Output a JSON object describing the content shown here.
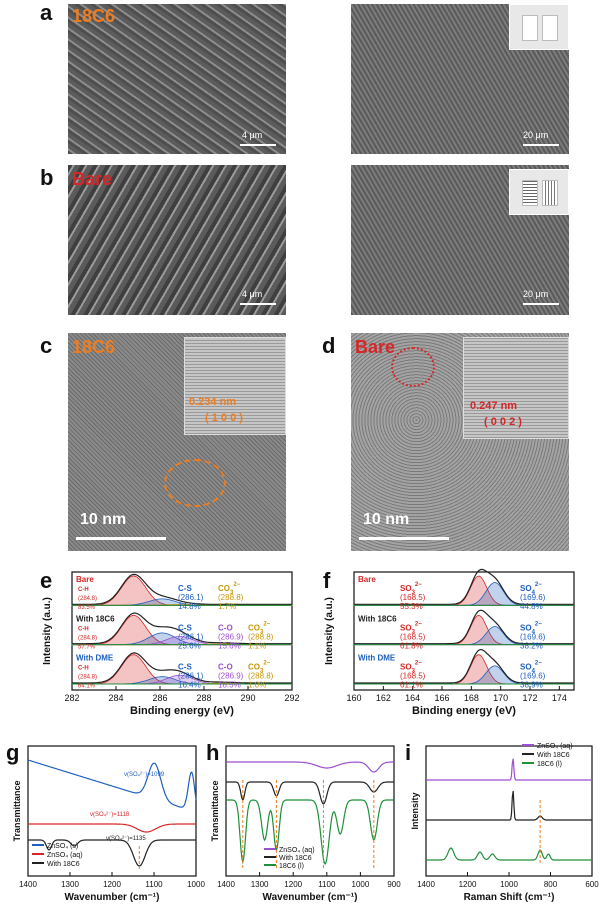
{
  "panels": {
    "a": {
      "letter": "a",
      "sample": "18C6",
      "scale_left": "4 μm",
      "scale_right": "20 μm"
    },
    "b": {
      "letter": "b",
      "sample": "Bare",
      "scale_left": "4 μm",
      "scale_right": "20 μm"
    },
    "c": {
      "letter": "c",
      "sample": "18C6",
      "scale": "10 nm",
      "d_spacing": "0.234 nm",
      "plane": "( 1 0 0 )"
    },
    "d": {
      "letter": "d",
      "sample": "Bare",
      "scale": "10 nm",
      "d_spacing": "0.247 nm",
      "plane": "( 0 0 2 )"
    }
  },
  "colors": {
    "label_18c6": "#ee7d1f",
    "label_bare": "#d62728",
    "red": "#d62728",
    "blue": "#1f5fbf",
    "purple": "#9b4fd1",
    "gold": "#c8960a",
    "green": "#1f8f3a",
    "black": "#222222"
  },
  "chart_data": [
    {
      "id": "e",
      "type": "line",
      "letter": "e",
      "xlabel": "Binding energy (eV)",
      "ylabel": "Intensity (a.u.)",
      "xlim": [
        282,
        292
      ],
      "xticks": [
        "282",
        "284",
        "286",
        "288",
        "290",
        "292"
      ],
      "groups": [
        {
          "name": "Bare",
          "name_color": "#d62728",
          "peaks": [
            {
              "label": "C-H",
              "position": "(284.8)",
              "percent": "83.5%",
              "color": "#d62728"
            },
            {
              "label": "C-S",
              "position": "(286.1)",
              "percent": "14.8%",
              "color": "#1f5fbf"
            },
            {
              "label": "CO",
              "sub": "3",
              "sup": "2−",
              "position": "(288.8)",
              "percent": "1.7%",
              "color": "#c8960a"
            }
          ]
        },
        {
          "name": "With 18C6",
          "name_color": "#222222",
          "peaks": [
            {
              "label": "C-H",
              "position": "(284.8)",
              "percent": "57.7%",
              "color": "#d62728"
            },
            {
              "label": "C-S",
              "position": "(286.1)",
              "percent": "25.6%",
              "color": "#1f5fbf"
            },
            {
              "label": "C-O",
              "position": "(286.9)",
              "percent": "15.6%",
              "color": "#9b4fd1"
            },
            {
              "label": "CO",
              "sub": "3",
              "sup": "2−",
              "position": "(288.8)",
              "percent": "1.1%",
              "color": "#c8960a"
            }
          ]
        },
        {
          "name": "With DME",
          "name_color": "#1f5fbf",
          "peaks": [
            {
              "label": "C-H",
              "position": "(284.8)",
              "percent": "64.1%",
              "color": "#d62728"
            },
            {
              "label": "C-S",
              "position": "(286.1)",
              "percent": "16.4%",
              "color": "#1f5fbf"
            },
            {
              "label": "C-O",
              "position": "(286.9)",
              "percent": "18.5%",
              "color": "#9b4fd1"
            },
            {
              "label": "CO",
              "sub": "3",
              "sup": "2−",
              "position": "(288.8)",
              "percent": "1.0%",
              "color": "#c8960a"
            }
          ]
        }
      ]
    },
    {
      "id": "f",
      "type": "line",
      "letter": "f",
      "xlabel": "Binding energy (eV)",
      "ylabel": "Intensity (a.u.)",
      "xlim": [
        160,
        175
      ],
      "xticks": [
        "160",
        "162",
        "164",
        "166",
        "168",
        "170",
        "172",
        "174"
      ],
      "groups": [
        {
          "name": "Bare",
          "name_color": "#d62728",
          "peaks": [
            {
              "label": "SO",
              "sub": "3",
              "sup": "2−",
              "position": "(168.5)",
              "percent": "55.3%",
              "color": "#d62728"
            },
            {
              "label": "SO",
              "sub": "4",
              "sup": "2−",
              "position": "(169.6)",
              "percent": "44.8%",
              "color": "#1f5fbf"
            }
          ]
        },
        {
          "name": "With 18C6",
          "name_color": "#222222",
          "peaks": [
            {
              "label": "SO",
              "sub": "3",
              "sup": "2−",
              "position": "(168.5)",
              "percent": "61.8%",
              "color": "#d62728"
            },
            {
              "label": "SO",
              "sub": "4",
              "sup": "2−",
              "position": "(169.6)",
              "percent": "38.2%",
              "color": "#1f5fbf"
            }
          ]
        },
        {
          "name": "With DME",
          "name_color": "#1f5fbf",
          "peaks": [
            {
              "label": "SO",
              "sub": "3",
              "sup": "2−",
              "position": "(168.5)",
              "percent": "61.1%",
              "color": "#d62728"
            },
            {
              "label": "SO",
              "sub": "4",
              "sup": "2−",
              "position": "(169.6)",
              "percent": "38.9%",
              "color": "#1f5fbf"
            }
          ]
        }
      ]
    },
    {
      "id": "g",
      "type": "line",
      "letter": "g",
      "xlabel": "Wavenumber (cm⁻¹)",
      "ylabel": "Transmittance",
      "xlim": [
        1400,
        1000
      ],
      "xticks": [
        "1400",
        "1300",
        "1200",
        "1100",
        "1000"
      ],
      "annotations": [
        {
          "text": "ν(SO₄²⁻)=1099",
          "color": "#1f5fbf"
        },
        {
          "text": "ν(SO₄²⁻)=1118",
          "color": "#d62728"
        },
        {
          "text": "ν(SO₄²⁻)=1135",
          "color": "#222222"
        }
      ],
      "series": [
        {
          "name": "ZnSO₄ (s)",
          "color": "#1f5fbf"
        },
        {
          "name": "ZnSO₄ (aq)",
          "color": "#d62728"
        },
        {
          "name": "With 18C6",
          "color": "#222222"
        }
      ]
    },
    {
      "id": "h",
      "type": "line",
      "letter": "h",
      "xlabel": "Wavenumber (cm⁻¹)",
      "ylabel": "Transmittance",
      "xlim": [
        1400,
        900
      ],
      "xticks": [
        "1400",
        "1300",
        "1200",
        "1100",
        "1000",
        "900"
      ],
      "series": [
        {
          "name": "ZnSO₄ (aq)",
          "color": "#9b4fd1"
        },
        {
          "name": "With 18C6",
          "color": "#222222"
        },
        {
          "name": "18C6 (l)",
          "color": "#1f8f3a"
        }
      ]
    },
    {
      "id": "i",
      "type": "line",
      "letter": "i",
      "xlabel": "Raman Shift (cm⁻¹)",
      "ylabel": "Intensity",
      "xlim": [
        1400,
        600
      ],
      "xticks": [
        "1400",
        "1200",
        "1000",
        "800",
        "600"
      ],
      "series": [
        {
          "name": "ZnSO₄ (aq)",
          "color": "#9b4fd1"
        },
        {
          "name": "With 18C6",
          "color": "#222222"
        },
        {
          "name": "18C6 (l)",
          "color": "#1f8f3a"
        }
      ]
    }
  ]
}
